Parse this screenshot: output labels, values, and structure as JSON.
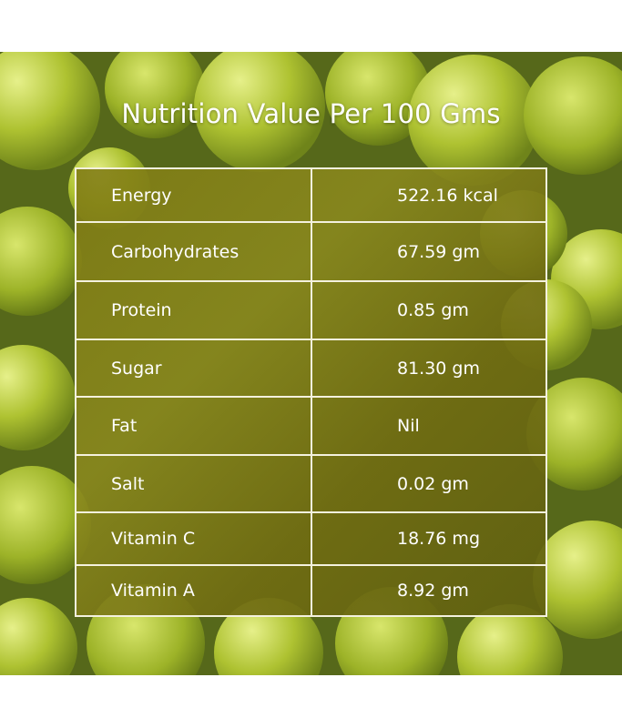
{
  "title": "Nutrition Value Per 100 Gms",
  "rows": [
    {
      "label": "Energy",
      "value": "522.16 kcal"
    },
    {
      "label": "Carbohydrates",
      "value": "67.59 gm"
    },
    {
      "label": "Protein",
      "value": "0.85 gm"
    },
    {
      "label": "Sugar",
      "value": "81.30 gm"
    },
    {
      "label": "Fat",
      "value": "Nil"
    },
    {
      "label": "Salt",
      "value": "0.02 gm"
    },
    {
      "label": "Vitamin C",
      "value": "18.76 mg"
    },
    {
      "label": "Vitamin A",
      "value": "8.92 gm"
    }
  ],
  "colors": {
    "fruit": "#b7cc3c",
    "table_bg": "#7f7c18",
    "border": "#f4f1de"
  }
}
